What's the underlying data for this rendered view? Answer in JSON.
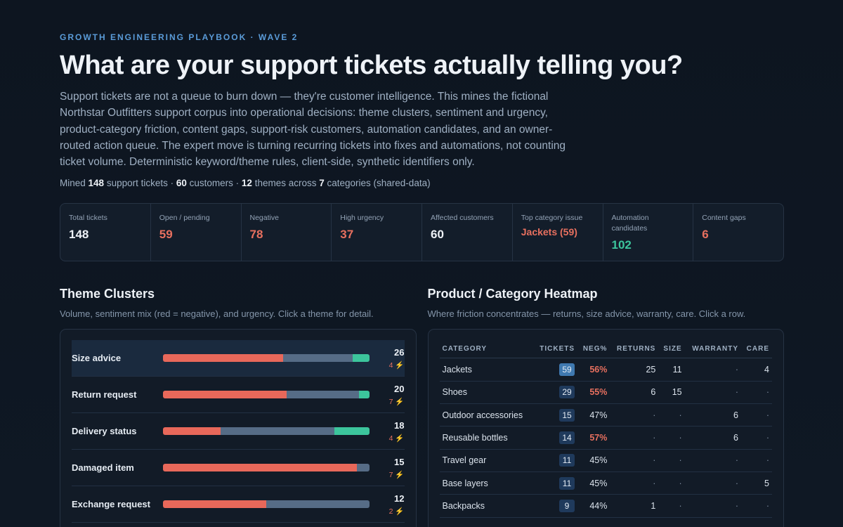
{
  "header": {
    "eyebrow": "GROWTH ENGINEERING PLAYBOOK · WAVE 2",
    "title": "What are your support tickets actually telling you?",
    "lede": "Support tickets are not a queue to burn down — they're customer intelligence. This mines the fictional Northstar Outfitters support corpus into operational decisions: theme clusters, sentiment and urgency, product-category friction, content gaps, support-risk customers, automation candidates, and an owner-routed action queue. The expert move is turning recurring tickets into fixes and automations, not counting ticket volume. Deterministic keyword/theme rules, client-side, synthetic identifiers only.",
    "mined": {
      "prefix": "Mined ",
      "tickets": "148",
      "t1": " support tickets · ",
      "customers": "60",
      "t2": " customers · ",
      "themes": "12",
      "t3": " themes across ",
      "categories": "7",
      "t4": " categories (shared-data)"
    }
  },
  "kpis": [
    {
      "label": "Total tickets",
      "value": "148",
      "tone": "white"
    },
    {
      "label": "Open / pending",
      "value": "59",
      "tone": "red"
    },
    {
      "label": "Negative",
      "value": "78",
      "tone": "red"
    },
    {
      "label": "High urgency",
      "value": "37",
      "tone": "red"
    },
    {
      "label": "Affected customers",
      "value": "60",
      "tone": "white"
    },
    {
      "label": "Top category issue",
      "value": "Jackets (59)",
      "tone": "red"
    },
    {
      "label": "Automation candidates",
      "value": "102",
      "tone": "green"
    },
    {
      "label": "Content gaps",
      "value": "6",
      "tone": "red"
    }
  ],
  "themes_section": {
    "title": "Theme Clusters",
    "subtitle": "Volume, sentiment mix (red = negative), and urgency. Click a theme for detail.",
    "rows": [
      {
        "name": "Size advice",
        "count": "26",
        "urgent": "4",
        "neg": 0.58,
        "neu": 0.34,
        "pos": 0.08,
        "active": true
      },
      {
        "name": "Return request",
        "count": "20",
        "urgent": "7",
        "neg": 0.6,
        "neu": 0.35,
        "pos": 0.05
      },
      {
        "name": "Delivery status",
        "count": "18",
        "urgent": "4",
        "neg": 0.28,
        "neu": 0.55,
        "pos": 0.17
      },
      {
        "name": "Damaged item",
        "count": "15",
        "urgent": "7",
        "neg": 0.94,
        "neu": 0.06,
        "pos": 0
      },
      {
        "name": "Exchange request",
        "count": "12",
        "urgent": "2",
        "neg": 0.5,
        "neu": 0.5,
        "pos": 0
      }
    ],
    "urgent_glyph": "⚡"
  },
  "heatmap_section": {
    "title": "Product / Category Heatmap",
    "subtitle": "Where friction concentrates — returns, size advice, warranty, care. Click a row.",
    "columns": [
      "CATEGORY",
      "TICKETS",
      "NEG%",
      "RETURNS",
      "SIZE",
      "WARRANTY",
      "CARE"
    ],
    "rows": [
      {
        "category": "Jackets",
        "tickets": "59",
        "neg": "56%",
        "neg_hi": true,
        "tk_hi": true,
        "returns": "25",
        "size": "11",
        "warranty": "·",
        "care": "4"
      },
      {
        "category": "Shoes",
        "tickets": "29",
        "neg": "55%",
        "neg_hi": true,
        "returns": "6",
        "size": "15",
        "warranty": "·",
        "care": "·"
      },
      {
        "category": "Outdoor accessories",
        "tickets": "15",
        "neg": "47%",
        "returns": "·",
        "size": "·",
        "warranty": "6",
        "care": "·"
      },
      {
        "category": "Reusable bottles",
        "tickets": "14",
        "neg": "57%",
        "neg_hi": true,
        "returns": "·",
        "size": "·",
        "warranty": "6",
        "care": "·"
      },
      {
        "category": "Travel gear",
        "tickets": "11",
        "neg": "45%",
        "returns": "·",
        "size": "·",
        "warranty": "·",
        "care": "·"
      },
      {
        "category": "Base layers",
        "tickets": "11",
        "neg": "45%",
        "returns": "·",
        "size": "·",
        "warranty": "·",
        "care": "5"
      },
      {
        "category": "Backpacks",
        "tickets": "9",
        "neg": "44%",
        "returns": "1",
        "size": "·",
        "warranty": "·",
        "care": "·"
      }
    ]
  },
  "colors": {
    "accent": "#5a9bd8",
    "negative": "#e8685a",
    "neutral": "#566c86",
    "positive": "#3cc59c"
  }
}
